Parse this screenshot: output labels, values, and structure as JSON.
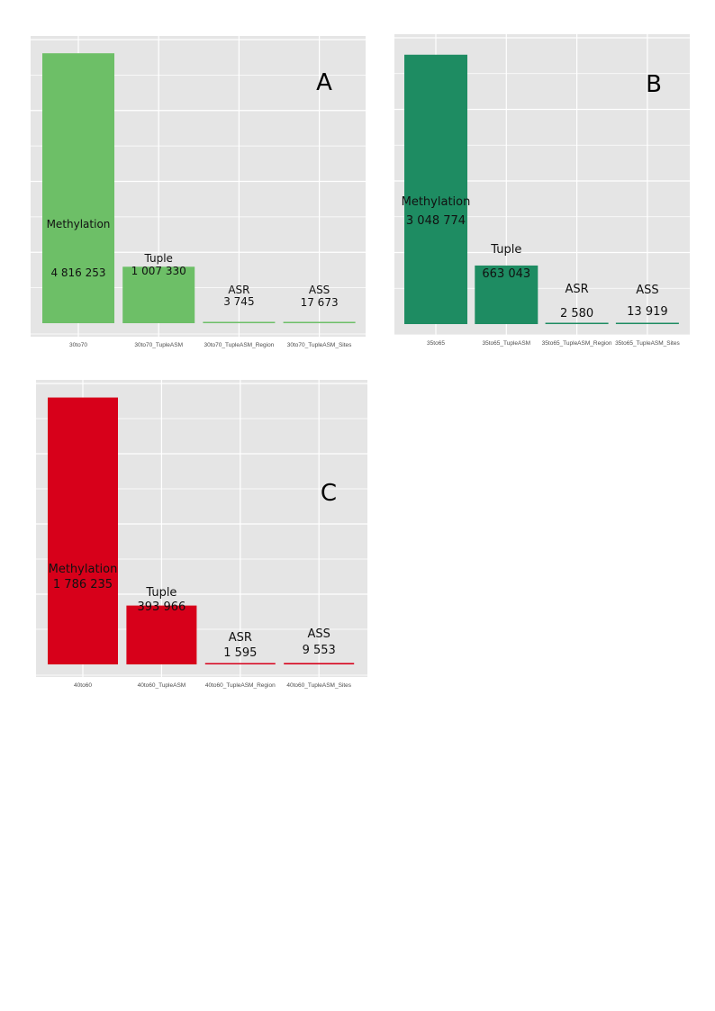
{
  "chart_data": [
    {
      "type": "bar",
      "panel_letter": "A",
      "categories": [
        "30to70",
        "30to70_TupleASM",
        "30to70_TupleASM_Region",
        "30to70_TupleASM_Sites"
      ],
      "values": [
        4816253,
        1007330,
        3745,
        17673
      ],
      "bar_labels": [
        {
          "name": "Methylation",
          "value": "4 816 253"
        },
        {
          "name": "Tuple",
          "value": "1 007 330"
        },
        {
          "name": "ASR",
          "value": "3 745"
        },
        {
          "name": "ASS",
          "value": "17 673"
        }
      ],
      "ylim": [
        0,
        5060000
      ],
      "grid": true,
      "bar_color": "#6dbf67"
    },
    {
      "type": "bar",
      "panel_letter": "B",
      "categories": [
        "35to65",
        "35to65_TupleASM",
        "35to65_TupleASM_Region",
        "35to65_TupleASM_Sites"
      ],
      "values": [
        3048774,
        663043,
        2580,
        13919
      ],
      "bar_labels": [
        {
          "name": "Methylation",
          "value": "3 048 774"
        },
        {
          "name": "Tuple",
          "value": "663 043"
        },
        {
          "name": "ASR",
          "value": "2 580"
        },
        {
          "name": "ASS",
          "value": "13 919"
        }
      ],
      "ylim": [
        0,
        3240000
      ],
      "grid": true,
      "bar_color": "#1e8c62"
    },
    {
      "type": "bar",
      "panel_letter": "C",
      "categories": [
        "40to60",
        "40to60_TupleASM",
        "40to60_TupleASM_Region",
        "40to60_TupleASM_Sites"
      ],
      "values": [
        1786235,
        393966,
        1595,
        9553
      ],
      "bar_labels": [
        {
          "name": "Methylation",
          "value": "1 786 235"
        },
        {
          "name": "Tuple",
          "value": "393 966"
        },
        {
          "name": "ASR",
          "value": "1 595"
        },
        {
          "name": "ASS",
          "value": "9 553"
        }
      ],
      "ylim": [
        0,
        1880000
      ],
      "grid": true,
      "bar_color": "#d7001a"
    }
  ]
}
